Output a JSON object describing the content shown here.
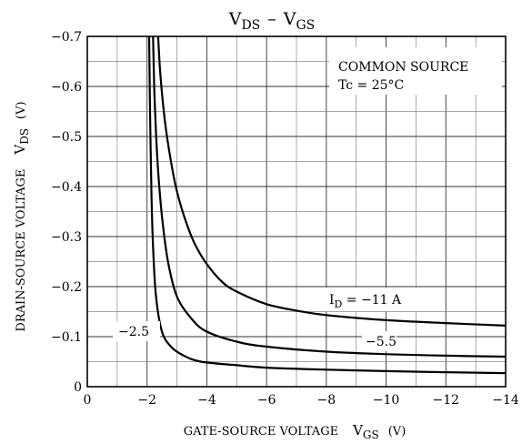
{
  "chart_data": {
    "type": "line",
    "title": {
      "main": "V",
      "sub1": "DS",
      "dash": "–",
      "main2": "V",
      "sub2": "GS"
    },
    "xlabel": {
      "text": "GATE-SOURCE VOLTAGE",
      "sym": "V",
      "sub": "GS",
      "unit": "(V)"
    },
    "ylabel": {
      "text": "DRAIN-SOURCE VOLTAGE",
      "sym": "V",
      "sub": "DS",
      "unit": "(V)"
    },
    "xlim": [
      0,
      -14
    ],
    "ylim": [
      0,
      -0.7
    ],
    "x_ticks": [
      "0",
      "−2",
      "−4",
      "−6",
      "−8",
      "−10",
      "−12",
      "−14"
    ],
    "y_ticks": [
      "0",
      "−0.1",
      "−0.2",
      "−0.3",
      "−0.4",
      "−0.5",
      "−0.6",
      "−0.7"
    ],
    "grid": true,
    "conditions": [
      "COMMON SOURCE",
      "Tc = 25°C"
    ],
    "series": [
      {
        "name": "−11 A",
        "label": {
          "prefix": "I",
          "sub": "D",
          "text": " = −11 A"
        },
        "x": [
          -2.37,
          -2.45,
          -2.6,
          -2.8,
          -3.0,
          -3.3,
          -3.6,
          -4.0,
          -4.5,
          -5.0,
          -6.0,
          -7.0,
          -8.0,
          -10.0,
          -12.0,
          -14.0
        ],
        "y": [
          -0.7,
          -0.62,
          -0.53,
          -0.45,
          -0.39,
          -0.33,
          -0.285,
          -0.245,
          -0.21,
          -0.19,
          -0.165,
          -0.152,
          -0.143,
          -0.133,
          -0.127,
          -0.122
        ]
      },
      {
        "name": "−5.5",
        "label": {
          "prefix": "",
          "sub": "",
          "text": "−5.5"
        },
        "x": [
          -2.2,
          -2.25,
          -2.35,
          -2.5,
          -2.7,
          -3.0,
          -3.5,
          -4.0,
          -5.0,
          -6.0,
          -8.0,
          -10.0,
          -12.0,
          -14.0
        ],
        "y": [
          -0.7,
          -0.58,
          -0.45,
          -0.34,
          -0.25,
          -0.18,
          -0.135,
          -0.11,
          -0.09,
          -0.08,
          -0.07,
          -0.065,
          -0.062,
          -0.06
        ]
      },
      {
        "name": "−2.5",
        "label": {
          "prefix": "",
          "sub": "",
          "text": "−2.5"
        },
        "x": [
          -2.07,
          -2.1,
          -2.15,
          -2.2,
          -2.3,
          -2.5,
          -2.8,
          -3.2,
          -3.8,
          -5.0,
          -6.0,
          -8.0,
          -10.0,
          -12.0,
          -14.0
        ],
        "y": [
          -0.7,
          -0.55,
          -0.38,
          -0.28,
          -0.18,
          -0.11,
          -0.08,
          -0.063,
          -0.05,
          -0.043,
          -0.038,
          -0.034,
          -0.031,
          -0.029,
          -0.027
        ]
      }
    ]
  }
}
